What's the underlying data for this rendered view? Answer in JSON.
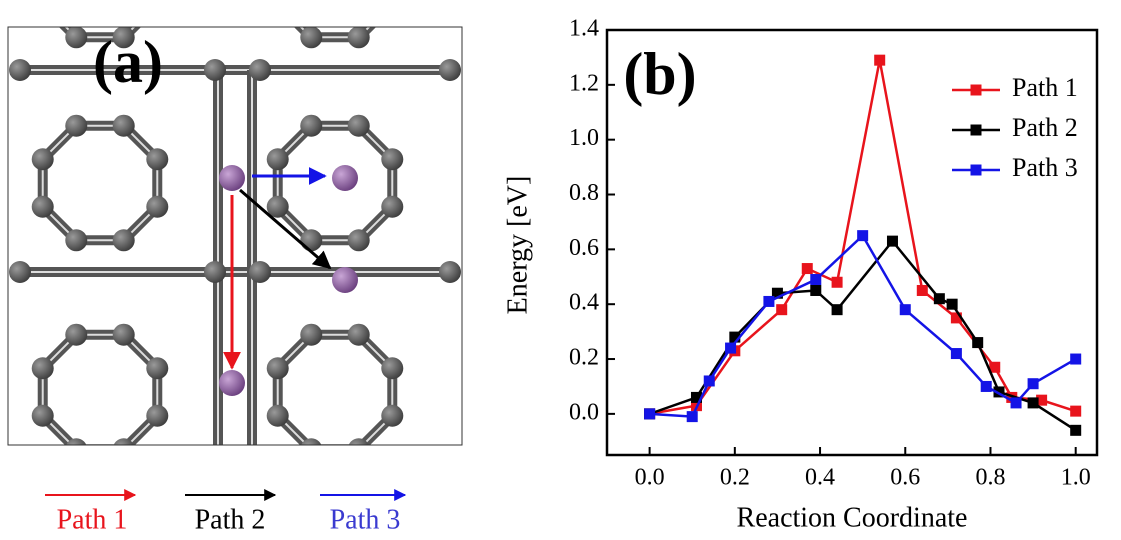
{
  "panel_a": {
    "label": "(a)",
    "paths": [
      "Path 1",
      "Path 2",
      "Path 3"
    ]
  },
  "chart_data": {
    "type": "line",
    "panel_label": "(b)",
    "x_label": "Reaction Coordinate",
    "y_label": "Energy [eV]",
    "xlim": [
      -0.1,
      1.05
    ],
    "ylim": [
      -0.15,
      1.4
    ],
    "xticks": [
      {
        "value": 0,
        "label": "0.0"
      },
      0.2,
      0.4,
      0.6,
      0.8,
      {
        "value": 1,
        "label": "1.0"
      }
    ],
    "yticks": [
      {
        "value": 0,
        "label": "0.0"
      },
      0.2,
      0.4,
      0.6,
      0.8,
      {
        "value": 1,
        "label": "1.0"
      },
      1.2,
      1.4
    ],
    "legend": "upper right",
    "series": [
      {
        "name": "Path 1",
        "color": "#e8141c",
        "x": [
          0,
          0.11,
          0.2,
          0.31,
          0.37,
          0.44,
          0.54,
          0.64,
          0.72,
          0.81,
          0.85,
          0.92,
          1.0
        ],
        "values": [
          0,
          0.03,
          0.23,
          0.38,
          0.53,
          0.48,
          1.29,
          0.45,
          0.35,
          0.17,
          0.06,
          0.05,
          0.01
        ]
      },
      {
        "name": "Path 2",
        "color": "#000000",
        "x": [
          0,
          0.11,
          0.2,
          0.3,
          0.39,
          0.44,
          0.57,
          0.68,
          0.71,
          0.77,
          0.82,
          0.9,
          1.0
        ],
        "values": [
          0,
          0.06,
          0.28,
          0.44,
          0.45,
          0.38,
          0.63,
          0.42,
          0.4,
          0.26,
          0.08,
          0.04,
          -0.06
        ]
      },
      {
        "name": "Path 3",
        "color": "#1414e6",
        "x": [
          0,
          0.1,
          0.14,
          0.19,
          0.28,
          0.39,
          0.5,
          0.6,
          0.72,
          0.79,
          0.86,
          0.9,
          1.0
        ],
        "values": [
          0,
          -0.01,
          0.12,
          0.24,
          0.41,
          0.49,
          0.65,
          0.38,
          0.22,
          0.1,
          0.04,
          0.11,
          0.2
        ]
      }
    ]
  }
}
